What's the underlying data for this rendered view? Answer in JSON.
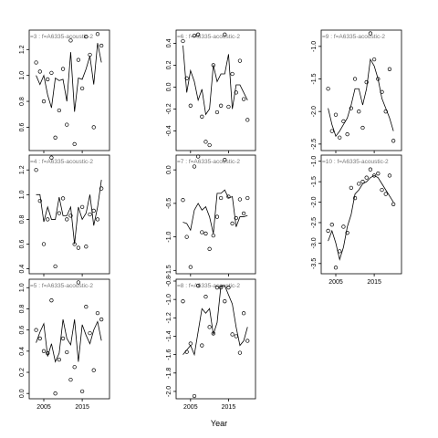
{
  "x_label": "Year",
  "chart_data": [
    {
      "type": "line",
      "title": "=3 :  f=A6335-acoustic-2",
      "x": [
        2003,
        2004,
        2005,
        2006,
        2007,
        2008,
        2009,
        2010,
        2011,
        2012,
        2013,
        2014,
        2015,
        2016,
        2017,
        2018,
        2019,
        2020
      ],
      "xlim": [
        2001.2,
        2022.1
      ],
      "xticks": [
        2005,
        2015
      ],
      "show_xticks": false,
      "color": "#000000",
      "ylim": [
        0.42,
        1.35
      ],
      "yticks": [
        0.6,
        0.8,
        {
          "value": 1.0,
          "label": "1.0"
        },
        1.2
      ],
      "series": [
        {
          "style": "points",
          "values": [
            1.1,
            1.03,
            0.8,
            0.97,
            1.02,
            0.52,
            0.73,
            1.05,
            0.62,
            1.27,
            0.47,
            1.12,
            0.9,
            1.3,
            1.16,
            0.6,
            1.32,
            1.23
          ]
        },
        {
          "style": "line",
          "values": [
            1.0,
            0.93,
            1.0,
            0.85,
            0.75,
            0.98,
            0.96,
            0.97,
            0.8,
            1.18,
            0.72,
            0.98,
            0.97,
            1.05,
            1.15,
            0.93,
            1.25,
            1.1
          ]
        }
      ]
    },
    {
      "type": "line",
      "title": "=4 :  f=A6335-acoustic-2",
      "x": [
        2003,
        2004,
        2005,
        2006,
        2007,
        2008,
        2009,
        2010,
        2011,
        2012,
        2013,
        2014,
        2015,
        2016,
        2017,
        2018,
        2019,
        2020
      ],
      "xlim": [
        2001.2,
        2022.1
      ],
      "xticks": [
        2005,
        2015
      ],
      "show_xticks": false,
      "color": "#000000",
      "ylim": [
        0.36,
        1.32
      ],
      "yticks": [
        0.4,
        0.6,
        0.8,
        {
          "value": 1.0,
          "label": "1.0"
        },
        1.2
      ],
      "series": [
        {
          "style": "points",
          "values": [
            1.2,
            0.95,
            0.6,
            0.8,
            1.3,
            0.42,
            0.85,
            0.97,
            0.8,
            0.83,
            0.6,
            0.57,
            0.9,
            0.58,
            0.84,
            0.87,
            0.8,
            1.05
          ]
        },
        {
          "style": "line",
          "values": [
            1.0,
            1.0,
            0.78,
            0.9,
            0.8,
            0.8,
            0.98,
            0.83,
            0.83,
            0.9,
            0.6,
            0.9,
            0.8,
            0.85,
            1.0,
            0.75,
            0.9,
            1.12
          ]
        }
      ]
    },
    {
      "type": "line",
      "title": "=5 :  f=A6335-acoustic-2",
      "x": [
        2003,
        2004,
        2005,
        2006,
        2007,
        2008,
        2009,
        2010,
        2011,
        2012,
        2013,
        2014,
        2015,
        2016,
        2017,
        2018,
        2019,
        2020
      ],
      "xlim": [
        2001.2,
        2022.1
      ],
      "xticks": [
        2005,
        2015
      ],
      "show_xticks": true,
      "color": "#000000",
      "ylim": [
        -0.05,
        1.08
      ],
      "yticks": [
        {
          "value": 0.0,
          "label": "0.0"
        },
        0.2,
        0.4,
        0.6,
        0.8,
        {
          "value": 1.0,
          "label": "1.0"
        }
      ],
      "series": [
        {
          "style": "points",
          "values": [
            0.6,
            0.52,
            0.4,
            0.38,
            0.88,
            0.0,
            0.32,
            0.52,
            0.39,
            0.13,
            0.25,
            1.05,
            0.02,
            0.82,
            0.57,
            0.22,
            0.76,
            0.7
          ]
        },
        {
          "style": "line",
          "values": [
            0.48,
            0.58,
            0.66,
            0.35,
            0.47,
            0.3,
            0.38,
            0.7,
            0.52,
            0.46,
            0.7,
            0.3,
            0.65,
            0.55,
            0.47,
            0.6,
            0.68,
            0.5
          ]
        }
      ]
    },
    {
      "type": "line",
      "title": "=6 :  f=A6335-acoustic-2",
      "x": [
        2003,
        2004,
        2005,
        2006,
        2007,
        2008,
        2009,
        2010,
        2011,
        2012,
        2013,
        2014,
        2015,
        2016,
        2017,
        2018,
        2019,
        2020
      ],
      "xlim": [
        2001.2,
        2022.1
      ],
      "xticks": [
        2005,
        2015
      ],
      "show_xticks": false,
      "color": "#000000",
      "ylim": [
        -0.58,
        0.52
      ],
      "yticks": [
        -0.4,
        -0.2,
        {
          "value": 0.0,
          "label": "0.0"
        },
        0.2,
        0.4
      ],
      "series": [
        {
          "style": "points",
          "values": [
            0.42,
            0.08,
            -0.17,
            0.47,
            0.48,
            -0.27,
            -0.5,
            -0.53,
            0.2,
            -0.23,
            -0.17,
            0.48,
            -0.18,
            0.12,
            -0.05,
            0.24,
            -0.11,
            -0.3
          ]
        },
        {
          "style": "line",
          "values": [
            0.38,
            -0.05,
            0.15,
            0.05,
            -0.12,
            -0.02,
            -0.25,
            -0.2,
            0.2,
            0.05,
            0.12,
            0.12,
            0.3,
            -0.2,
            0.02,
            0.02,
            -0.05,
            -0.12
          ]
        }
      ]
    },
    {
      "type": "line",
      "title": "=7 :  f=A6335-acoustic-2",
      "x": [
        2003,
        2004,
        2005,
        2006,
        2007,
        2008,
        2009,
        2010,
        2011,
        2012,
        2013,
        2014,
        2015,
        2016,
        2017,
        2018,
        2019,
        2020
      ],
      "xlim": [
        2001.2,
        2022.1
      ],
      "xticks": [
        2005,
        2015
      ],
      "show_xticks": false,
      "color": "#000000",
      "ylim": [
        -1.55,
        0.22
      ],
      "yticks": [
        -1.5,
        {
          "value": -1.0,
          "label": "-1.0"
        },
        -0.5,
        {
          "value": 0.0,
          "label": "0.0"
        }
      ],
      "series": [
        {
          "style": "points",
          "values": [
            -0.45,
            -1.0,
            -1.45,
            0.05,
            0.2,
            -0.93,
            -0.95,
            -1.18,
            -0.98,
            -0.7,
            -0.42,
            0.15,
            -0.4,
            -0.8,
            -0.72,
            -0.44,
            -0.65,
            -0.42
          ]
        },
        {
          "style": "line",
          "values": [
            -0.78,
            -0.8,
            -0.9,
            -0.6,
            -0.5,
            -0.6,
            -0.55,
            -0.7,
            -0.95,
            -0.35,
            -0.35,
            -0.3,
            -0.42,
            -0.4,
            -0.85,
            -0.7,
            -0.7,
            -0.68
          ]
        }
      ]
    },
    {
      "type": "line",
      "title": "=8 :  f=A6335-acoustic-2",
      "x": [
        2003,
        2004,
        2005,
        2006,
        2007,
        2008,
        2009,
        2010,
        2011,
        2012,
        2013,
        2014,
        2015,
        2016,
        2017,
        2018,
        2019,
        2020
      ],
      "xlim": [
        2001.2,
        2022.1
      ],
      "xticks": [
        2005,
        2015
      ],
      "show_xticks": true,
      "color": "#000000",
      "ylim": [
        -2.08,
        -0.78
      ],
      "yticks": [
        {
          "value": -2.0,
          "label": "-2.0"
        },
        -1.8,
        -1.6,
        -1.4,
        -1.2,
        {
          "value": -1.0,
          "label": "-1.0"
        },
        -0.8
      ],
      "series": [
        {
          "style": "points",
          "values": [
            -1.02,
            -1.57,
            -1.48,
            -2.05,
            -0.85,
            -1.5,
            -0.97,
            -1.3,
            -1.37,
            -0.87,
            -0.87,
            -1.02,
            -0.87,
            -1.38,
            -1.4,
            -1.58,
            -1.15,
            -1.45
          ]
        },
        {
          "style": "line",
          "values": [
            -1.6,
            -1.55,
            -1.5,
            -1.6,
            -1.35,
            -1.1,
            -1.15,
            -1.1,
            -1.38,
            -1.25,
            -0.85,
            -0.85,
            -0.95,
            -1.05,
            -1.3,
            -1.5,
            -1.45,
            -1.3
          ]
        }
      ]
    },
    {
      "type": "line",
      "title": "=9 :  f=A6335-acoustic-2",
      "x": [
        2003,
        2004,
        2005,
        2006,
        2007,
        2008,
        2009,
        2010,
        2011,
        2012,
        2013,
        2014,
        2015,
        2016,
        2017,
        2018,
        2019,
        2020
      ],
      "xlim": [
        2001.2,
        2022.1
      ],
      "xticks": [
        2005,
        2015
      ],
      "show_xticks": false,
      "color": "#000000",
      "ylim": [
        -2.6,
        -0.75
      ],
      "yticks": [
        -2.5,
        {
          "value": -2.0,
          "label": "-2.0"
        },
        -1.5,
        {
          "value": -1.0,
          "label": "-1.0"
        }
      ],
      "series": [
        {
          "style": "points",
          "values": [
            -1.65,
            -2.3,
            -2.05,
            -2.4,
            -2.15,
            -2.35,
            -1.95,
            -1.5,
            -2.0,
            -2.25,
            -1.55,
            -0.8,
            -1.2,
            -1.5,
            -1.7,
            -2.0,
            -1.35,
            -2.45
          ]
        },
        {
          "style": "line",
          "values": [
            -1.95,
            -2.2,
            -2.38,
            -2.3,
            -2.2,
            -2.1,
            -1.9,
            -1.65,
            -1.65,
            -1.9,
            -1.65,
            -1.2,
            -1.3,
            -1.5,
            -1.8,
            -1.95,
            -2.1,
            -2.3
          ]
        }
      ]
    },
    {
      "type": "line",
      "title": "=10 :  f=A6335-acoustic-2",
      "x": [
        2003,
        2004,
        2005,
        2006,
        2007,
        2008,
        2009,
        2010,
        2011,
        2012,
        2013,
        2014,
        2015,
        2016,
        2017,
        2018,
        2019,
        2020
      ],
      "xlim": [
        2001.2,
        2022.1
      ],
      "xticks": [
        2005,
        2015
      ],
      "show_xticks": true,
      "color": "#000000",
      "ylim": [
        -3.75,
        -0.85
      ],
      "yticks": [
        -3.5,
        {
          "value": -3.0,
          "label": "-3.0"
        },
        -2.5,
        {
          "value": -2.0,
          "label": "-2.0"
        },
        -1.5,
        {
          "value": -1.0,
          "label": "-1.0"
        }
      ],
      "series": [
        {
          "style": "points",
          "values": [
            -2.7,
            -2.55,
            -3.6,
            -3.2,
            -2.6,
            -2.75,
            -1.65,
            -1.9,
            -1.55,
            -1.5,
            -1.4,
            -1.2,
            -1.35,
            -1.3,
            -1.7,
            -1.8,
            -1.35,
            -2.05
          ]
        },
        {
          "style": "line",
          "values": [
            -2.95,
            -2.7,
            -3.0,
            -3.4,
            -3.1,
            -2.6,
            -2.3,
            -1.8,
            -1.7,
            -1.55,
            -1.5,
            -1.4,
            -1.35,
            -1.4,
            -1.55,
            -1.7,
            -1.85,
            -2.0
          ]
        }
      ]
    }
  ]
}
